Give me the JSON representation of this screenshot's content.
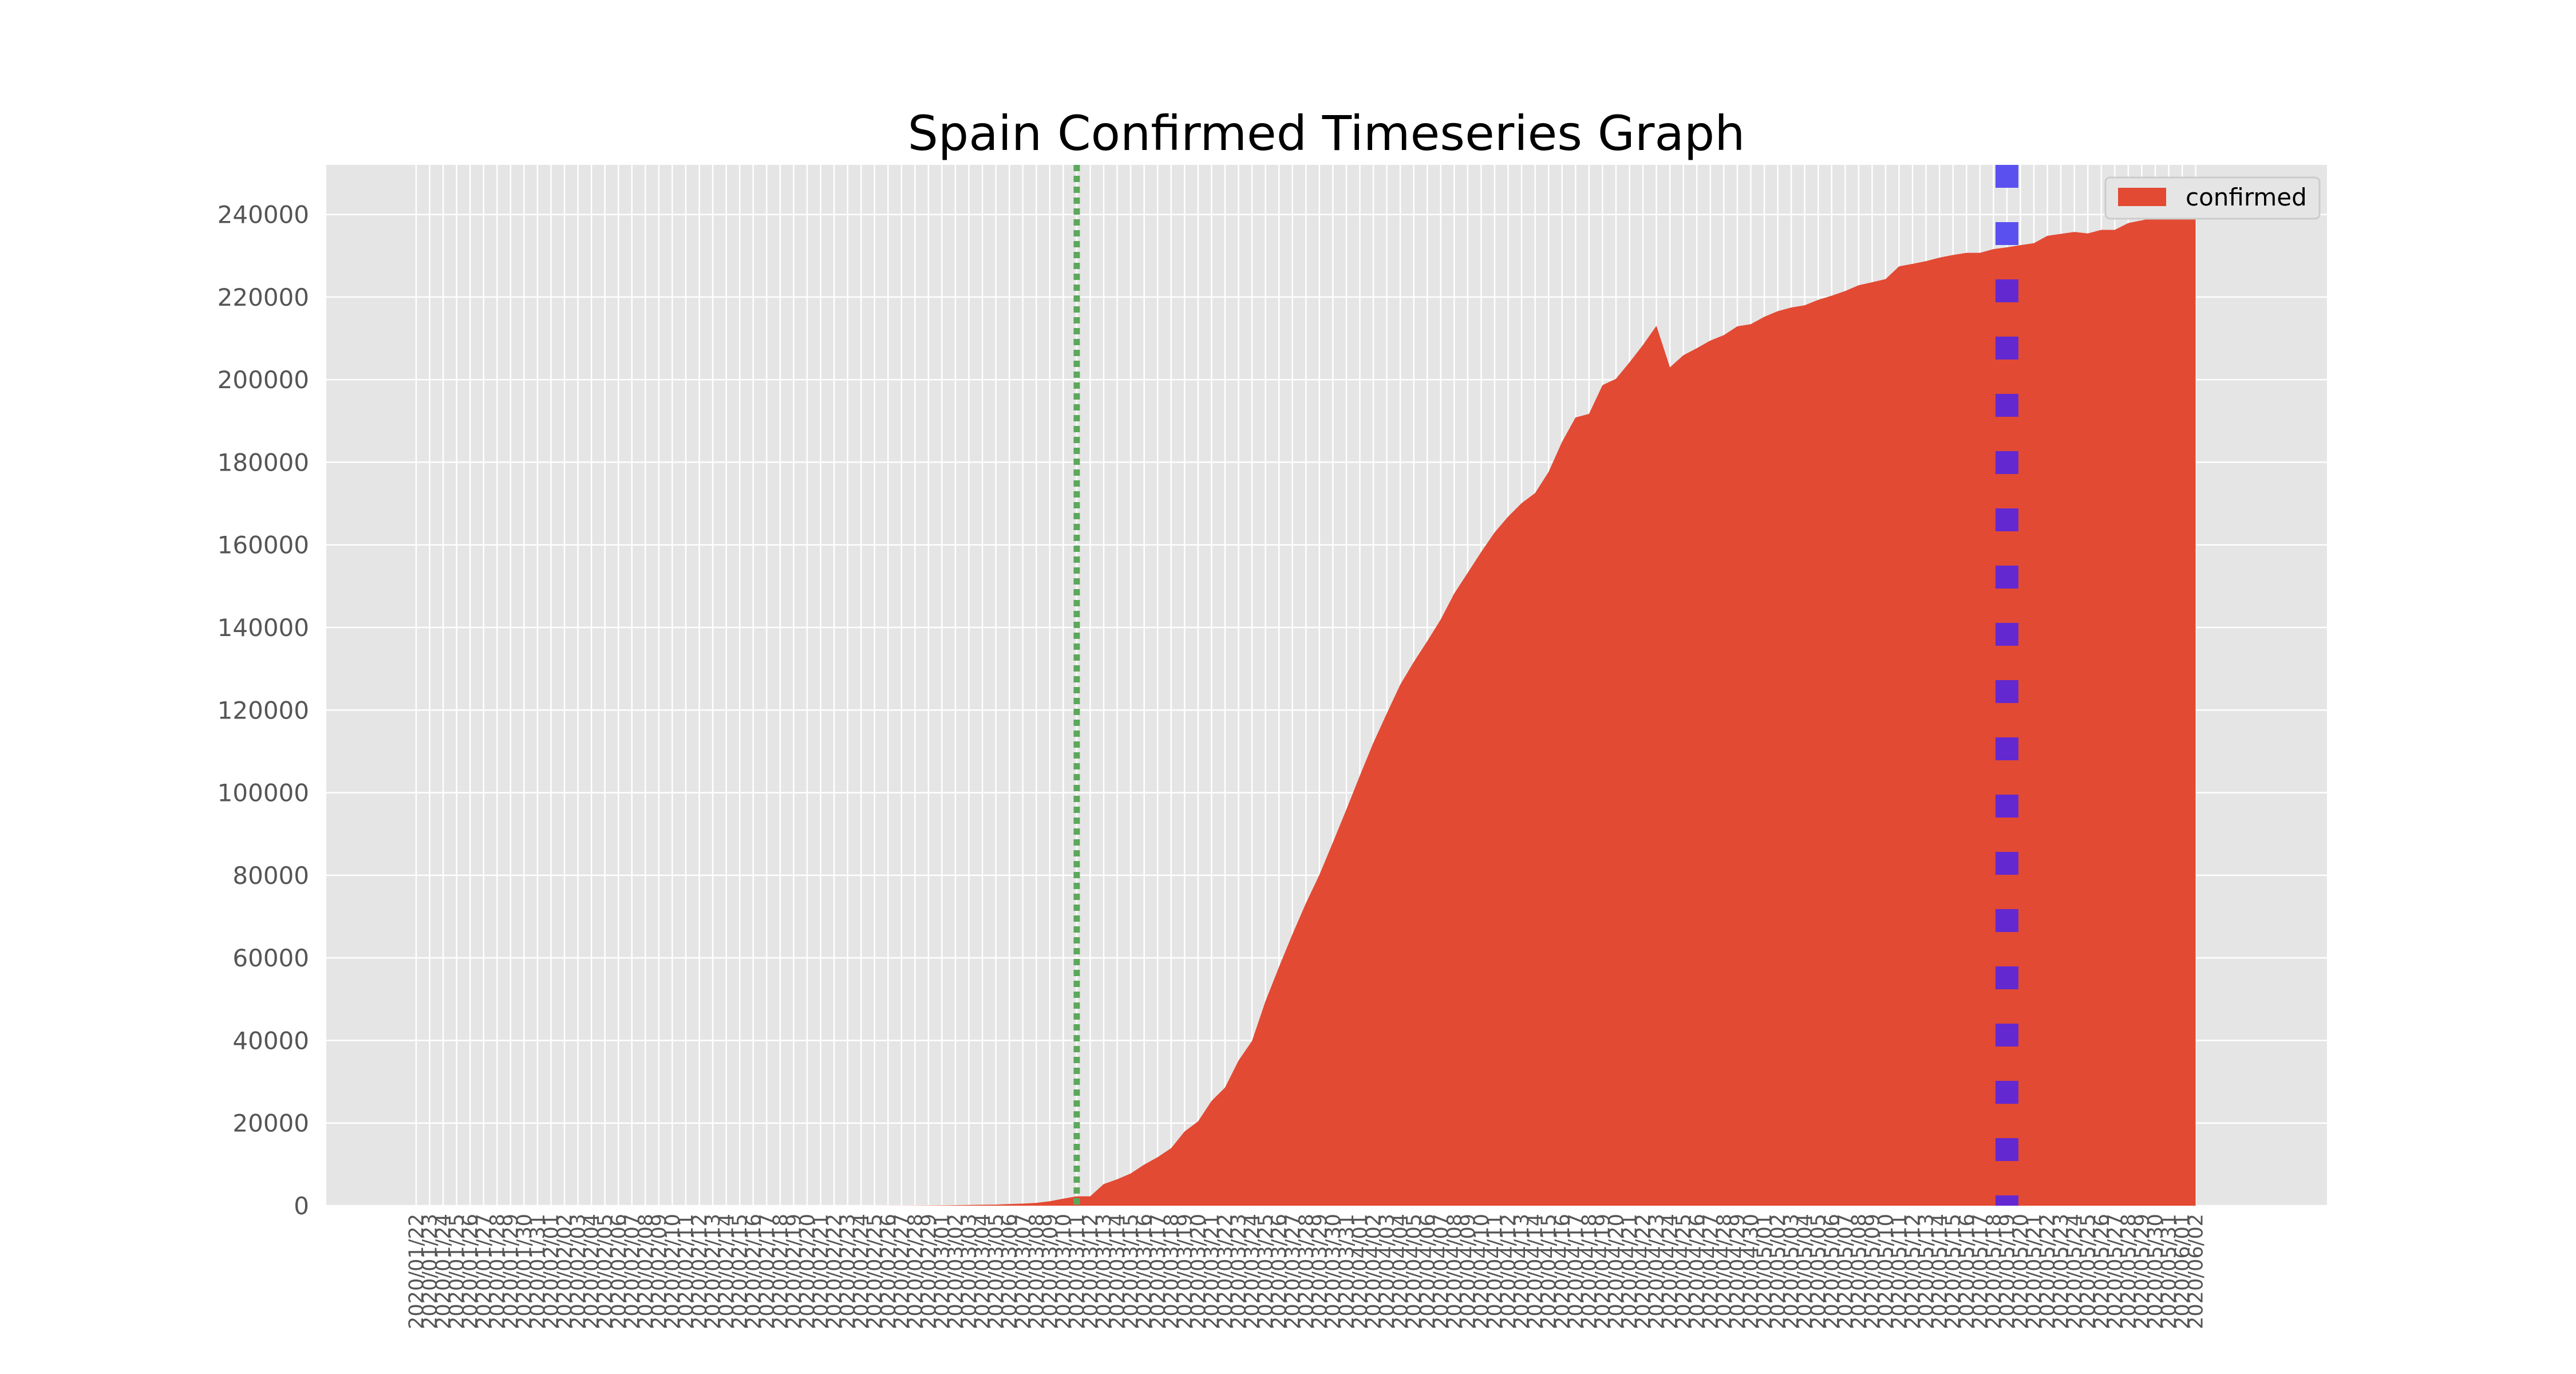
{
  "chart_data": {
    "type": "area",
    "title": "Spain Confirmed Timeseries Graph",
    "xlabel": "",
    "ylabel": "",
    "ylim": [
      0,
      252000
    ],
    "yticks": [
      0,
      20000,
      40000,
      60000,
      80000,
      100000,
      120000,
      140000,
      160000,
      180000,
      200000,
      220000,
      240000
    ],
    "grid": true,
    "legend_position": "top-right",
    "colors": {
      "area": "#E24A33",
      "background": "#E5E5E5",
      "grid": "#FFFFFF",
      "green_line": "#5BA85B",
      "blue_line": "#5A50F0",
      "blue_line_overlap": "#6328D0"
    },
    "x": [
      "2020/01/22",
      "2020/01/23",
      "2020/01/24",
      "2020/01/25",
      "2020/01/26",
      "2020/01/27",
      "2020/01/28",
      "2020/01/29",
      "2020/01/30",
      "2020/01/31",
      "2020/02/01",
      "2020/02/02",
      "2020/02/03",
      "2020/02/04",
      "2020/02/05",
      "2020/02/06",
      "2020/02/07",
      "2020/02/08",
      "2020/02/09",
      "2020/02/10",
      "2020/02/11",
      "2020/02/12",
      "2020/02/13",
      "2020/02/14",
      "2020/02/15",
      "2020/02/16",
      "2020/02/17",
      "2020/02/18",
      "2020/02/19",
      "2020/02/20",
      "2020/02/21",
      "2020/02/22",
      "2020/02/23",
      "2020/02/24",
      "2020/02/25",
      "2020/02/26",
      "2020/02/27",
      "2020/02/28",
      "2020/02/29",
      "2020/03/01",
      "2020/03/02",
      "2020/03/03",
      "2020/03/04",
      "2020/03/05",
      "2020/03/06",
      "2020/03/07",
      "2020/03/08",
      "2020/03/09",
      "2020/03/10",
      "2020/03/11",
      "2020/03/12",
      "2020/03/13",
      "2020/03/14",
      "2020/03/15",
      "2020/03/16",
      "2020/03/17",
      "2020/03/18",
      "2020/03/19",
      "2020/03/20",
      "2020/03/21",
      "2020/03/22",
      "2020/03/23",
      "2020/03/24",
      "2020/03/25",
      "2020/03/26",
      "2020/03/27",
      "2020/03/28",
      "2020/03/29",
      "2020/03/30",
      "2020/03/31",
      "2020/04/01",
      "2020/04/02",
      "2020/04/03",
      "2020/04/04",
      "2020/04/05",
      "2020/04/06",
      "2020/04/07",
      "2020/04/08",
      "2020/04/09",
      "2020/04/10",
      "2020/04/11",
      "2020/04/12",
      "2020/04/13",
      "2020/04/14",
      "2020/04/15",
      "2020/04/16",
      "2020/04/17",
      "2020/04/18",
      "2020/04/19",
      "2020/04/20",
      "2020/04/21",
      "2020/04/22",
      "2020/04/23",
      "2020/04/24",
      "2020/04/25",
      "2020/04/26",
      "2020/04/27",
      "2020/04/28",
      "2020/04/29",
      "2020/04/30",
      "2020/05/01",
      "2020/05/02",
      "2020/05/03",
      "2020/05/04",
      "2020/05/05",
      "2020/05/06",
      "2020/05/07",
      "2020/05/08",
      "2020/05/09",
      "2020/05/10",
      "2020/05/11",
      "2020/05/12",
      "2020/05/13",
      "2020/05/14",
      "2020/05/15",
      "2020/05/16",
      "2020/05/17",
      "2020/05/18",
      "2020/05/19",
      "2020/05/20",
      "2020/05/21",
      "2020/05/22",
      "2020/05/23",
      "2020/05/24",
      "2020/05/25",
      "2020/05/26",
      "2020/05/27",
      "2020/05/28",
      "2020/05/29",
      "2020/05/30",
      "2020/05/31",
      "2020/06/01",
      "2020/06/02"
    ],
    "series": [
      {
        "name": "confirmed",
        "values": [
          0,
          0,
          0,
          0,
          0,
          0,
          0,
          0,
          0,
          1,
          1,
          1,
          1,
          1,
          1,
          1,
          1,
          2,
          2,
          2,
          2,
          2,
          2,
          2,
          2,
          2,
          2,
          2,
          2,
          2,
          2,
          2,
          2,
          2,
          6,
          13,
          15,
          32,
          45,
          84,
          120,
          165,
          222,
          259,
          400,
          500,
          673,
          1073,
          1695,
          2277,
          2277,
          5232,
          6391,
          7798,
          9942,
          11748,
          13910,
          17963,
          20410,
          25374,
          28603,
          35136,
          39885,
          49515,
          57786,
          65719,
          73235,
          80110,
          87956,
          95923,
          104118,
          112065,
          119199,
          126168,
          131646,
          136675,
          141942,
          148220,
          153222,
          158273,
          163027,
          166831,
          170099,
          172541,
          177644,
          184948,
          190839,
          191726,
          198674,
          200210,
          204178,
          208389,
          213024,
          202990,
          205905,
          207634,
          209465,
          210773,
          212917,
          213435,
          215216,
          216582,
          217466,
          218011,
          219329,
          220325,
          221447,
          222857,
          223578,
          224350,
          227436,
          228030,
          228691,
          229540,
          230183,
          230698,
          230698,
          231606,
          232037,
          232555,
          233037,
          234824,
          235290,
          235772,
          235400,
          236259,
          236259,
          237906,
          238564,
          239228,
          239479,
          239638,
          239932
        ]
      }
    ],
    "vlines": [
      {
        "x": "2020/03/11",
        "style": "dotted",
        "color": "green"
      },
      {
        "x": "2020/05/19",
        "style": "dotted",
        "color": "blue"
      }
    ]
  }
}
